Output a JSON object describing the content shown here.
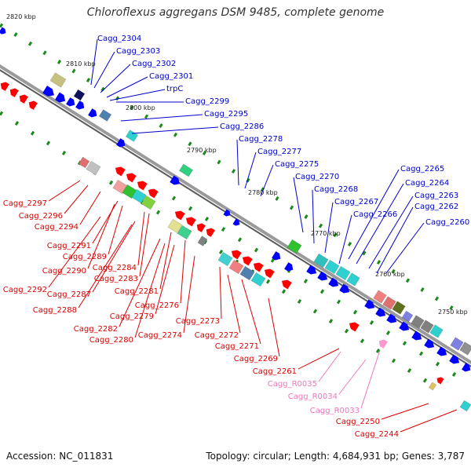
{
  "title": "Chloroflexus aggregans DSM 9485, complete genome",
  "accession": "Accession: NC_011831",
  "summary": "Topology: circular; Length: 4,684,931 bp; Genes: 3,787",
  "colors": {
    "backbone": "#808080",
    "forward_cds": "#0000ff",
    "reverse_cds": "#ff0000",
    "rna": "#ff99cc",
    "gc_marker": "#1a8a1a",
    "forward_label": "#0000cc",
    "reverse_label": "#dd0000",
    "rna_label": "#ee77bb"
  },
  "ticks": [
    "2820 kbp",
    "2810 kbp",
    "2800 kbp",
    "2790 kbp",
    "2780 kbp",
    "2770 kbp",
    "2760 kbp",
    "2750 kbp"
  ],
  "forward_labels": [
    "Cagg_2304",
    "Cagg_2303",
    "Cagg_2302",
    "Cagg_2301",
    "trpC",
    "Cagg_2299",
    "Cagg_2295",
    "Cagg_2286",
    "Cagg_2278",
    "Cagg_2277",
    "Cagg_2275",
    "Cagg_2270",
    "Cagg_2268",
    "Cagg_2267",
    "Cagg_2266",
    "Cagg_2265",
    "Cagg_2264",
    "Cagg_2263",
    "Cagg_2262",
    "Cagg_2260"
  ],
  "reverse_labels": [
    "Cagg_2297",
    "Cagg_2296",
    "Cagg_2294",
    "Cagg_2291",
    "Cagg_2289",
    "Cagg_2290",
    "Cagg_2284",
    "Cagg_2283",
    "Cagg_2292",
    "Cagg_2287",
    "Cagg_2288",
    "Cagg_2281",
    "Cagg_2276",
    "Cagg_2279",
    "Cagg_2282",
    "Cagg_2280",
    "Cagg_2274",
    "Cagg_2273",
    "Cagg_2272",
    "Cagg_2271",
    "Cagg_2269",
    "Cagg_2261",
    "Cagg_2250",
    "Cagg_2244"
  ],
  "rna_labels": [
    "Cagg_R0035",
    "Cagg_R0034",
    "Cagg_R0033"
  ]
}
